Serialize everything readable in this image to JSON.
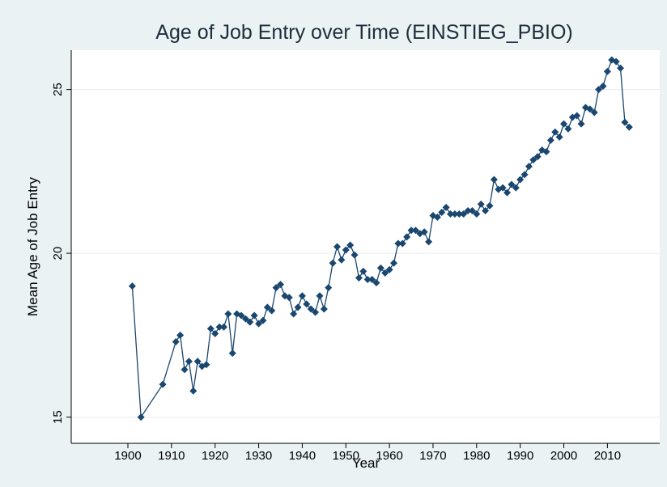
{
  "chart_data": {
    "type": "line",
    "title": "Age of Job Entry over Time (EINSTIEG_PBIO)",
    "x_label": "Year",
    "y_label": "Mean Age of Job Entry",
    "x": [
      1901,
      1903,
      1908,
      1911,
      1912,
      1913,
      1914,
      1915,
      1916,
      1917,
      1918,
      1919,
      1920,
      1921,
      1922,
      1923,
      1924,
      1925,
      1926,
      1927,
      1928,
      1929,
      1930,
      1931,
      1932,
      1933,
      1934,
      1935,
      1936,
      1937,
      1938,
      1939,
      1940,
      1941,
      1942,
      1943,
      1944,
      1945,
      1946,
      1947,
      1948,
      1949,
      1950,
      1951,
      1952,
      1953,
      1954,
      1955,
      1956,
      1957,
      1958,
      1959,
      1960,
      1961,
      1962,
      1963,
      1964,
      1965,
      1966,
      1967,
      1968,
      1969,
      1970,
      1971,
      1972,
      1973,
      1974,
      1975,
      1976,
      1977,
      1978,
      1979,
      1980,
      1981,
      1982,
      1983,
      1984,
      1985,
      1986,
      1987,
      1988,
      1989,
      1990,
      1991,
      1992,
      1993,
      1994,
      1995,
      1996,
      1997,
      1998,
      1999,
      2000,
      2001,
      2002,
      2003,
      2004,
      2005,
      2006,
      2007,
      2008,
      2009,
      2010,
      2011,
      2012,
      2013,
      2014,
      2015
    ],
    "series": [
      {
        "name": "Mean Age of Job Entry",
        "color": "#1a476f",
        "values": [
          19.0,
          15.0,
          16.0,
          17.3,
          17.5,
          16.45,
          16.7,
          15.8,
          16.7,
          16.55,
          16.6,
          17.7,
          17.55,
          17.75,
          17.75,
          18.15,
          16.95,
          18.15,
          18.1,
          18.0,
          17.9,
          18.1,
          17.85,
          17.95,
          18.35,
          18.25,
          18.95,
          19.05,
          18.7,
          18.65,
          18.15,
          18.35,
          18.7,
          18.45,
          18.3,
          18.2,
          18.7,
          18.3,
          18.95,
          19.7,
          20.2,
          19.8,
          20.1,
          20.25,
          19.95,
          19.25,
          19.45,
          19.2,
          19.2,
          19.1,
          19.55,
          19.4,
          19.5,
          19.7,
          20.3,
          20.3,
          20.5,
          20.7,
          20.7,
          20.6,
          20.65,
          20.35,
          21.15,
          21.1,
          21.25,
          21.4,
          21.2,
          21.2,
          21.2,
          21.2,
          21.3,
          21.3,
          21.2,
          21.5,
          21.3,
          21.45,
          22.25,
          21.95,
          22.0,
          21.85,
          22.1,
          22.0,
          22.25,
          22.4,
          22.65,
          22.85,
          22.95,
          23.15,
          23.1,
          23.45,
          23.7,
          23.55,
          23.95,
          23.8,
          24.15,
          24.2,
          23.95,
          24.45,
          24.4,
          24.3,
          25.0,
          25.1,
          25.55,
          25.9,
          25.85,
          25.65,
          24.0,
          23.85
        ]
      }
    ],
    "xlim": [
      1887,
      2022
    ],
    "ylim": [
      14.2,
      26.2
    ],
    "xticks": [
      1900,
      1910,
      1920,
      1930,
      1940,
      1950,
      1960,
      1970,
      1980,
      1990,
      2000,
      2010
    ],
    "yticks": [
      15,
      20,
      25
    ],
    "grid": true,
    "markers": "diamond"
  }
}
